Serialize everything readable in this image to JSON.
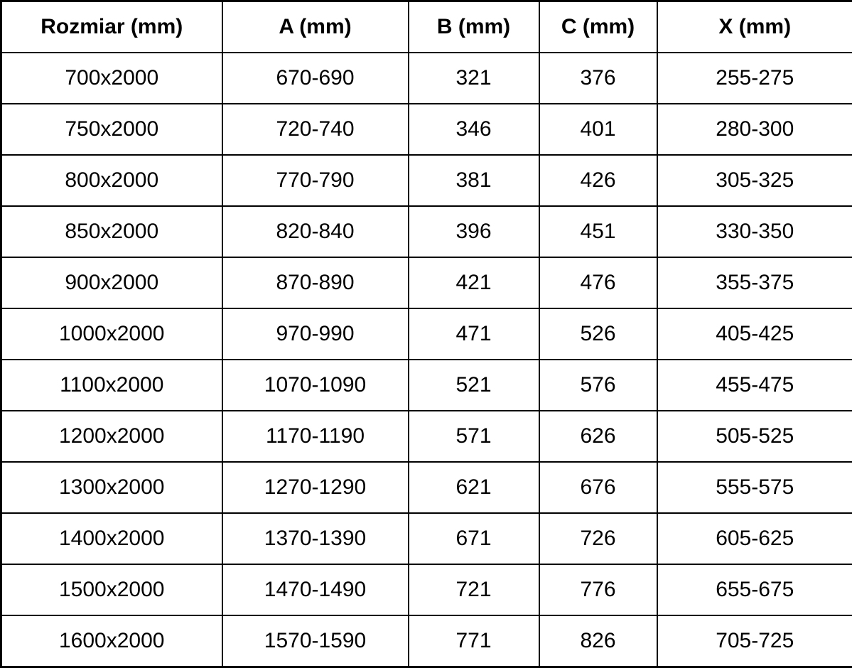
{
  "table": {
    "columns": [
      {
        "key": "rozmiar",
        "label": "Rozmiar (mm)"
      },
      {
        "key": "a",
        "label": "A (mm)"
      },
      {
        "key": "b",
        "label": "B (mm)"
      },
      {
        "key": "c",
        "label": "C (mm)"
      },
      {
        "key": "x",
        "label": "X (mm)"
      }
    ],
    "rows": [
      [
        "700x2000",
        "670-690",
        "321",
        "376",
        "255-275"
      ],
      [
        "750x2000",
        "720-740",
        "346",
        "401",
        "280-300"
      ],
      [
        "800x2000",
        "770-790",
        "381",
        "426",
        "305-325"
      ],
      [
        "850x2000",
        "820-840",
        "396",
        "451",
        "330-350"
      ],
      [
        "900x2000",
        "870-890",
        "421",
        "476",
        "355-375"
      ],
      [
        "1000x2000",
        "970-990",
        "471",
        "526",
        "405-425"
      ],
      [
        "1100x2000",
        "1070-1090",
        "521",
        "576",
        "455-475"
      ],
      [
        "1200x2000",
        "1170-1190",
        "571",
        "626",
        "505-525"
      ],
      [
        "1300x2000",
        "1270-1290",
        "621",
        "676",
        "555-575"
      ],
      [
        "1400x2000",
        "1370-1390",
        "671",
        "726",
        "605-625"
      ],
      [
        "1500x2000",
        "1470-1490",
        "721",
        "776",
        "655-675"
      ],
      [
        "1600x2000",
        "1570-1590",
        "771",
        "826",
        "705-725"
      ]
    ],
    "colors": {
      "border": "#000000",
      "text": "#000000",
      "background": "#ffffff"
    }
  }
}
